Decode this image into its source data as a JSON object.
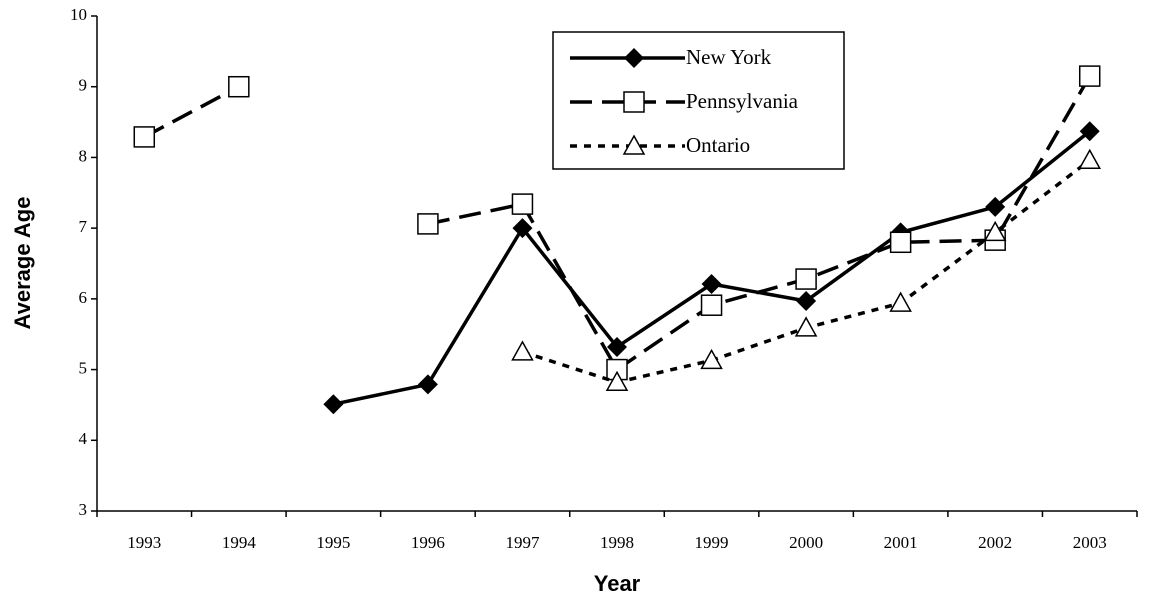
{
  "chart_data": {
    "type": "line",
    "x_label": "Year",
    "y_label": "Average Age",
    "categories": [
      "1993",
      "1994",
      "1995",
      "1996",
      "1997",
      "1998",
      "1999",
      "2000",
      "2001",
      "2002",
      "2003"
    ],
    "series": [
      {
        "name": "New York",
        "color": "#000000",
        "dash": "solid",
        "marker": "diamond",
        "values": [
          null,
          null,
          4.51,
          4.79,
          7.0,
          5.32,
          6.21,
          5.97,
          6.94,
          7.3,
          8.37
        ]
      },
      {
        "name": "Pennsylvania",
        "color": "#000000",
        "dash": "dashed",
        "marker": "square",
        "values": [
          8.29,
          9.0,
          null,
          7.06,
          7.34,
          5.0,
          5.91,
          6.28,
          6.8,
          6.83,
          9.15
        ]
      },
      {
        "name": "Ontario",
        "color": "#000000",
        "dash": "dotted",
        "marker": "triangle",
        "values": [
          null,
          null,
          null,
          null,
          5.25,
          4.82,
          5.13,
          5.59,
          5.94,
          6.94,
          7.96
        ]
      }
    ],
    "ylim": [
      3,
      10
    ],
    "yticks": [
      3,
      4,
      5,
      6,
      7,
      8,
      9,
      10
    ],
    "grid": false
  }
}
